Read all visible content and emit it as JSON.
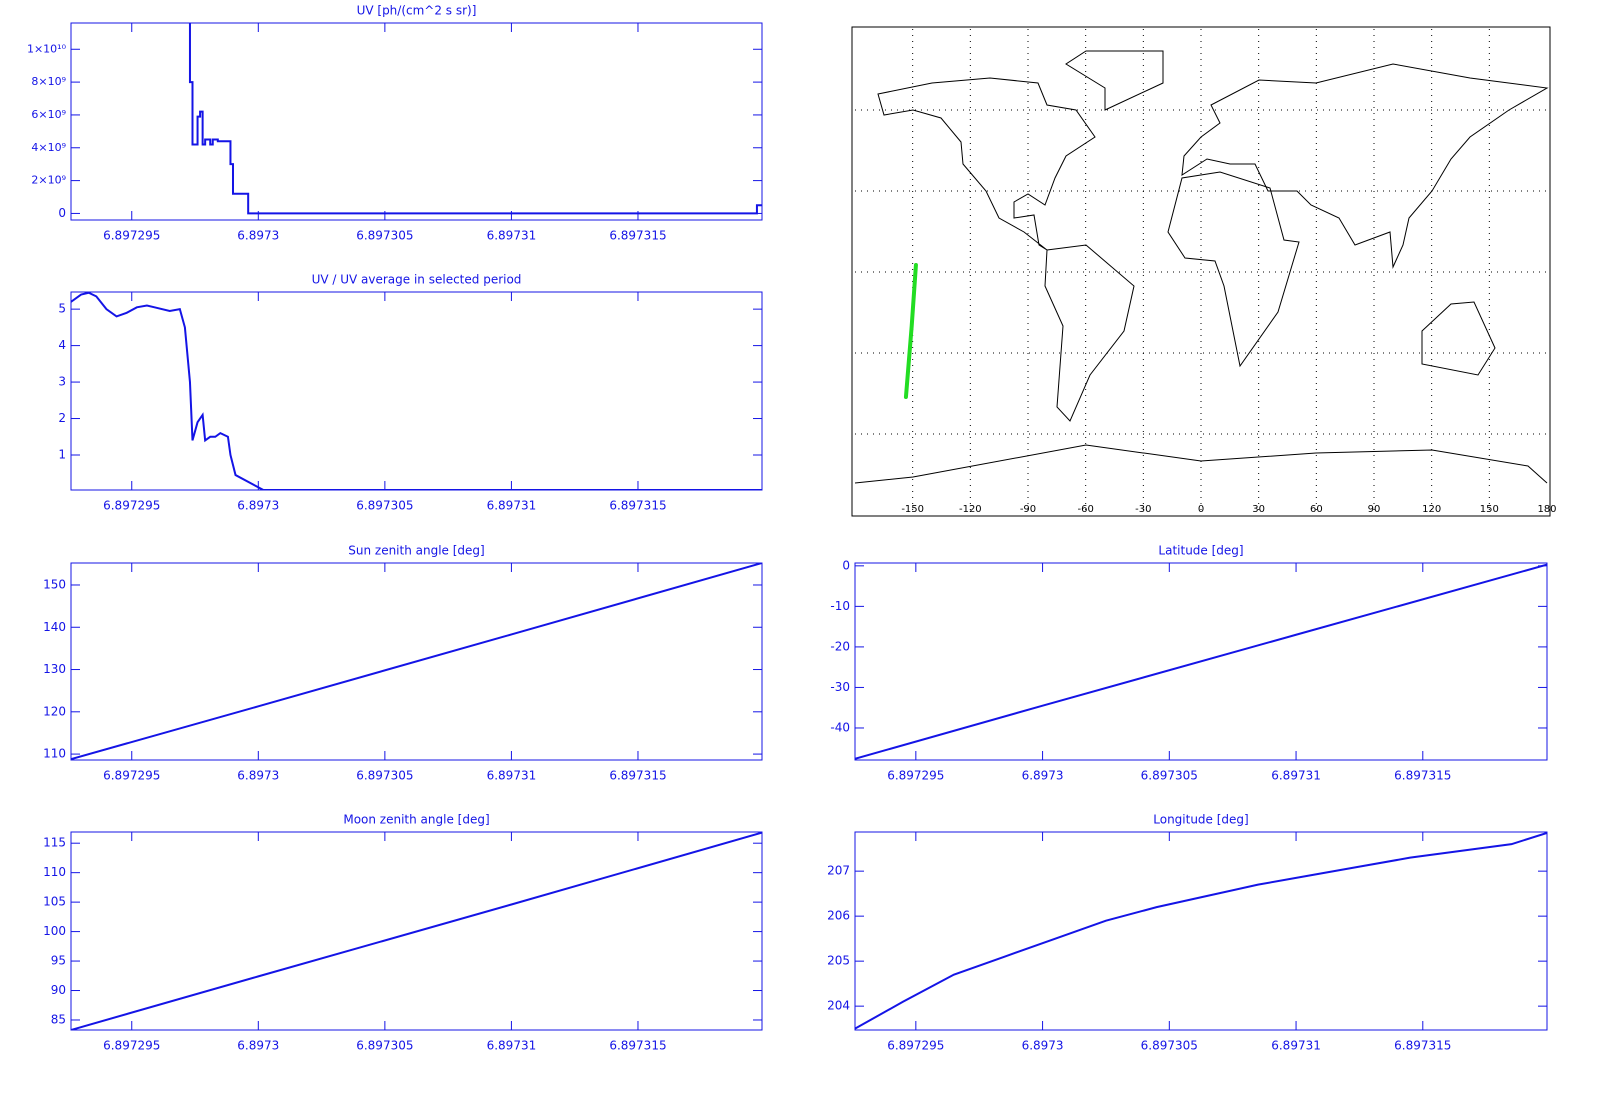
{
  "chart_data": [
    {
      "type": "step",
      "title": "UV [ph/(cm^2 s sr)]",
      "color": "#1414e6",
      "x": [
        6.8972972,
        6.8972973,
        6.8972974,
        6.8972976,
        6.8972977,
        6.8972978,
        6.8972979,
        6.8972981,
        6.8972982,
        6.8972984,
        6.8972989,
        6.897299,
        6.8972996,
        6.8973197,
        6.8973199
      ],
      "values": [
        14000000000,
        8000000000,
        4200000000,
        5900000000,
        6200000000,
        4200000000,
        4500000000,
        4200000000,
        4500000000,
        4400000000,
        3000000000,
        1200000000,
        0,
        500000000,
        500000000
      ],
      "xlim": [
        6.8972926,
        6.8973199
      ],
      "ylim": [
        -400000000,
        11600000000
      ],
      "xticks": [
        6.897295,
        6.8973,
        6.897305,
        6.89731,
        6.897315
      ],
      "yticks": [
        0,
        {
          "value": 2000000000,
          "label": "2×10⁹"
        },
        {
          "value": 4000000000,
          "label": "4×10⁹"
        },
        {
          "value": 6000000000,
          "label": "6×10⁹"
        },
        {
          "value": 8000000000,
          "label": "8×10⁹"
        },
        {
          "value": 10000000000,
          "label": "1×10¹⁰"
        }
      ]
    },
    {
      "type": "line",
      "title": "UV / UV average in selected period",
      "color": "#1414e6",
      "x": [
        6.8972926,
        6.897293,
        6.8972933,
        6.8972936,
        6.897294,
        6.8972944,
        6.8972948,
        6.8972952,
        6.8972956,
        6.8972959,
        6.8972965,
        6.8972969,
        6.8972971,
        6.8972973,
        6.8972974,
        6.8972976,
        6.8972978,
        6.8972979,
        6.8972981,
        6.8972983,
        6.8972985,
        6.8972988,
        6.8972989,
        6.8972991,
        6.8973002,
        6.8973199
      ],
      "values": [
        5.2,
        5.4,
        5.45,
        5.35,
        5.0,
        4.8,
        4.9,
        5.05,
        5.1,
        5.05,
        4.95,
        5.0,
        4.5,
        3.0,
        1.4,
        1.9,
        2.1,
        1.4,
        1.5,
        1.5,
        1.6,
        1.5,
        1.0,
        0.45,
        0.04,
        0.04
      ],
      "xlim": [
        6.8972926,
        6.8973199
      ],
      "ylim": [
        0.04,
        5.47
      ],
      "xticks": [
        6.897295,
        6.8973,
        6.897305,
        6.89731,
        6.897315
      ],
      "yticks": [
        1,
        2,
        3,
        4,
        5
      ]
    },
    {
      "type": "line",
      "title": "Sun zenith angle [deg]",
      "color": "#1414e6",
      "x": [
        6.8972926,
        6.8973,
        6.89731,
        6.8973199
      ],
      "values": [
        108.8,
        121.3,
        138.3,
        155.2
      ],
      "xlim": [
        6.8972926,
        6.8973199
      ],
      "ylim": [
        108.6,
        155.2
      ],
      "xticks": [
        6.897295,
        6.8973,
        6.897305,
        6.89731,
        6.897315
      ],
      "yticks": [
        110,
        120,
        130,
        140,
        150
      ]
    },
    {
      "type": "line",
      "title": "Moon zenith angle [deg]",
      "color": "#1414e6",
      "x": [
        6.8972926,
        6.8973,
        6.89731,
        6.8973199
      ],
      "values": [
        83.3,
        92.4,
        104.6,
        116.8
      ],
      "xlim": [
        6.8972926,
        6.8973199
      ],
      "ylim": [
        83.3,
        116.9
      ],
      "xticks": [
        6.897295,
        6.8973,
        6.897305,
        6.89731,
        6.897315
      ],
      "yticks": [
        85,
        90,
        95,
        100,
        105,
        110,
        115
      ]
    },
    {
      "type": "map",
      "color": "#22dd22",
      "x": [
        -148.3,
        -150.5,
        -153.5
      ],
      "values": [
        2.6,
        -20,
        -46.3
      ],
      "xlim": [
        -180,
        180
      ],
      "ylim": [
        -90,
        90
      ],
      "xticks": [
        -150,
        -120,
        -90,
        -60,
        -30,
        0,
        30,
        60,
        90,
        120,
        150,
        180
      ],
      "ygrid": [
        -60,
        -30,
        0,
        30,
        60
      ]
    },
    {
      "type": "line",
      "title": "Latitude [deg]",
      "color": "#1414e6",
      "x": [
        6.8972926,
        6.8973,
        6.89731,
        6.8973199
      ],
      "values": [
        -47.6,
        -34.5,
        -17,
        0.3
      ],
      "xlim": [
        6.8972926,
        6.8973199
      ],
      "ylim": [
        -47.9,
        0.7
      ],
      "xticks": [
        6.897295,
        6.8973,
        6.897305,
        6.89731,
        6.897315
      ],
      "yticks": [
        0,
        -10,
        -20,
        -30,
        -40
      ]
    },
    {
      "type": "line",
      "title": "Longitude [deg]",
      "color": "#1414e6",
      "x": [
        6.8972926,
        6.8972945,
        6.8972965,
        6.8972985,
        6.8973005,
        6.8973025,
        6.8973045,
        6.8973065,
        6.8973085,
        6.8973105,
        6.8973125,
        6.8973145,
        6.8973165,
        6.8973185,
        6.8973199
      ],
      "values": [
        203.5,
        204.1,
        204.7,
        205.1,
        205.5,
        205.9,
        206.2,
        206.45,
        206.7,
        206.9,
        207.1,
        207.3,
        207.45,
        207.6,
        207.85
      ],
      "xlim": [
        6.8972926,
        6.8973199
      ],
      "ylim": [
        203.47,
        207.87
      ],
      "xticks": [
        6.897295,
        6.8973,
        6.897305,
        6.89731,
        6.897315
      ],
      "yticks": [
        204,
        205,
        206,
        207
      ]
    }
  ]
}
